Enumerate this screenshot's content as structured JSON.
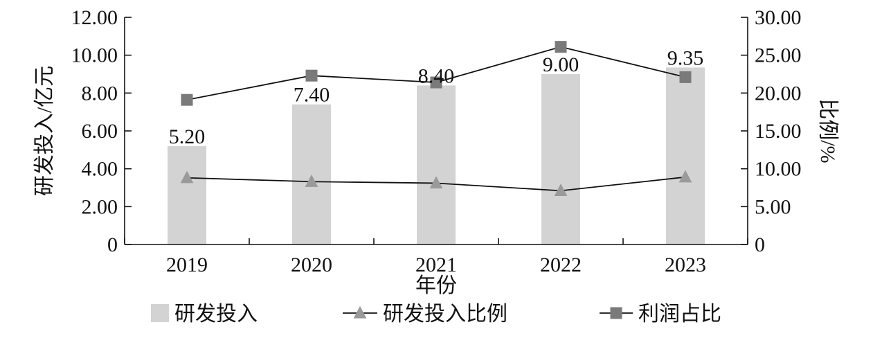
{
  "chart_data": {
    "type": "bar",
    "categories": [
      "2019",
      "2020",
      "2021",
      "2022",
      "2023"
    ],
    "xlabel": "年份",
    "ylabel": "研发投入/亿元",
    "y2label": "比例/%",
    "ylim": [
      0,
      12
    ],
    "y2lim": [
      0,
      30
    ],
    "yticks": [
      "0",
      "2.00",
      "4.00",
      "6.00",
      "8.00",
      "10.00",
      "12.00"
    ],
    "y2ticks": [
      "0",
      "5.00",
      "10.00",
      "15.00",
      "20.00",
      "25.00",
      "30.00"
    ],
    "grid": false,
    "legend_position": "bottom",
    "series": [
      {
        "name": "研发投入",
        "kind": "bar",
        "axis": "left",
        "color": "#d3d3d3",
        "values": [
          5.2,
          7.4,
          8.4,
          9.0,
          9.35
        ],
        "labels": [
          "5.20",
          "7.40",
          "8.40",
          "9.00",
          "9.35"
        ]
      },
      {
        "name": "研发投入比例",
        "kind": "line",
        "axis": "right",
        "marker": "triangle",
        "marker_color": "#9a9a9a",
        "line_color": "#111111",
        "values": [
          8.8,
          8.3,
          8.1,
          7.1,
          8.9
        ]
      },
      {
        "name": "利润占比",
        "kind": "line",
        "axis": "right",
        "marker": "square",
        "marker_color": "#7a7a7a",
        "line_color": "#111111",
        "values": [
          19.1,
          22.3,
          21.4,
          26.1,
          22.1
        ]
      }
    ]
  }
}
